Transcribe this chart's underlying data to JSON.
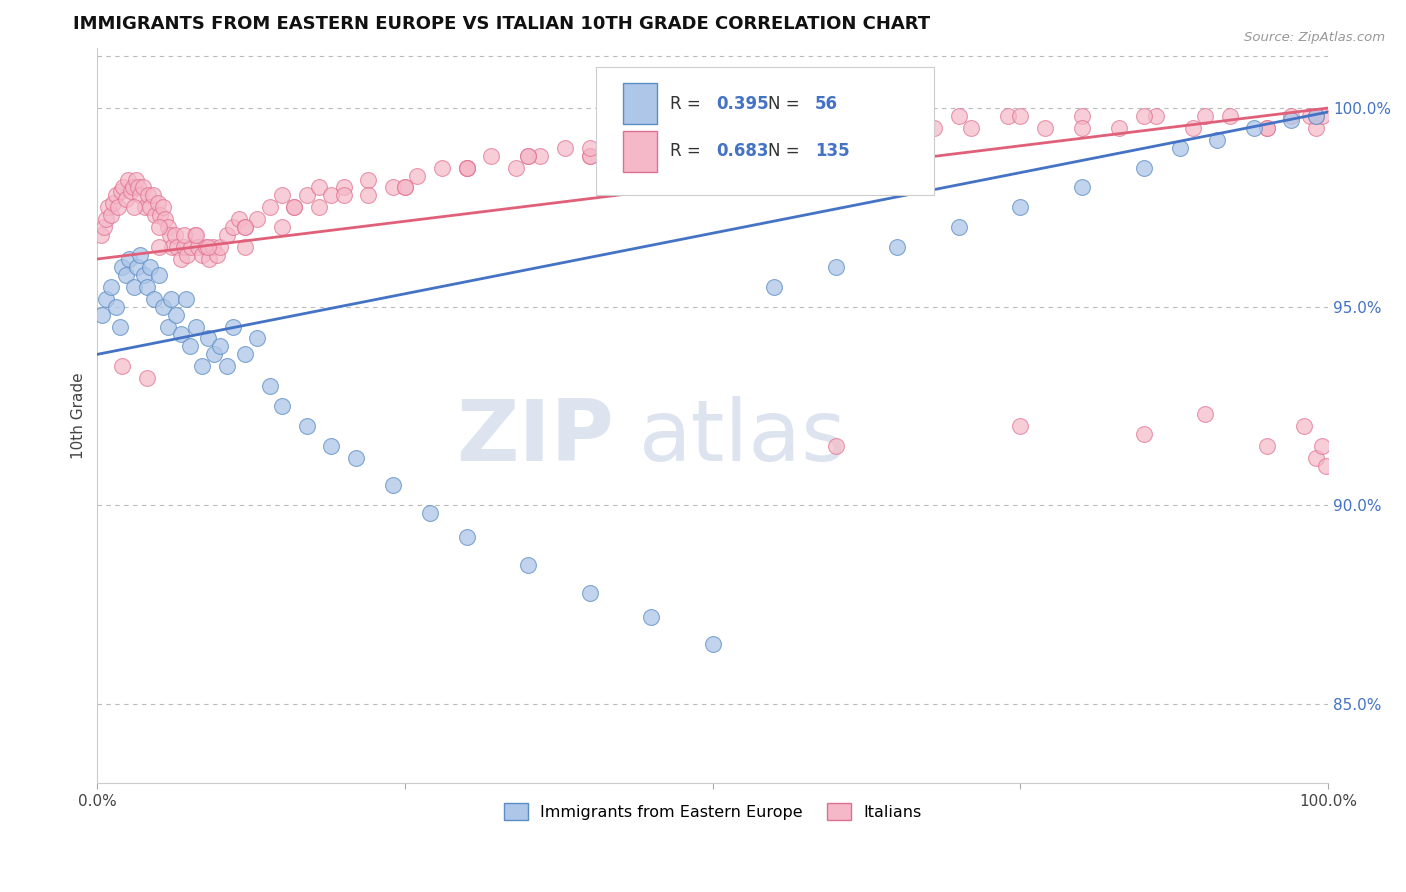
{
  "title": "IMMIGRANTS FROM EASTERN EUROPE VS ITALIAN 10TH GRADE CORRELATION CHART",
  "source": "Source: ZipAtlas.com",
  "ylabel": "10th Grade",
  "y_tick_positions_right": [
    85.0,
    90.0,
    95.0,
    100.0
  ],
  "xlim": [
    0.0,
    100.0
  ],
  "ylim": [
    83.0,
    101.5
  ],
  "blue_R": 0.395,
  "blue_N": 56,
  "pink_R": 0.683,
  "pink_N": 135,
  "blue_color": "#aec6e8",
  "pink_color": "#f5b8c8",
  "blue_edge_color": "#5b8ec4",
  "pink_edge_color": "#e07090",
  "blue_line_color": "#4472c4",
  "pink_line_color": "#e0607a",
  "legend_blue_label": "Immigrants from Eastern Europe",
  "legend_pink_label": "Italians",
  "watermark_zip": "ZIP",
  "watermark_atlas": "atlas",
  "blue_trend_x0": 0,
  "blue_trend_y0": 93.8,
  "blue_trend_x1": 100,
  "blue_trend_y1": 99.9,
  "pink_trend_x0": 0,
  "pink_trend_y0": 96.2,
  "pink_trend_x1": 100,
  "pink_trend_y1": 100.0,
  "blue_scatter_x": [
    0.4,
    0.7,
    1.1,
    1.5,
    1.8,
    2.0,
    2.3,
    2.6,
    3.0,
    3.2,
    3.5,
    3.8,
    4.0,
    4.3,
    4.6,
    5.0,
    5.3,
    5.7,
    6.0,
    6.4,
    6.8,
    7.2,
    7.5,
    8.0,
    8.5,
    9.0,
    9.5,
    10.0,
    10.5,
    11.0,
    12.0,
    13.0,
    14.0,
    15.0,
    17.0,
    19.0,
    21.0,
    24.0,
    27.0,
    30.0,
    35.0,
    40.0,
    45.0,
    50.0,
    55.0,
    60.0,
    65.0,
    70.0,
    75.0,
    80.0,
    85.0,
    88.0,
    91.0,
    94.0,
    97.0,
    99.0
  ],
  "blue_scatter_y": [
    94.8,
    95.2,
    95.5,
    95.0,
    94.5,
    96.0,
    95.8,
    96.2,
    95.5,
    96.0,
    96.3,
    95.8,
    95.5,
    96.0,
    95.2,
    95.8,
    95.0,
    94.5,
    95.2,
    94.8,
    94.3,
    95.2,
    94.0,
    94.5,
    93.5,
    94.2,
    93.8,
    94.0,
    93.5,
    94.5,
    93.8,
    94.2,
    93.0,
    92.5,
    92.0,
    91.5,
    91.2,
    90.5,
    89.8,
    89.2,
    88.5,
    87.8,
    87.2,
    86.5,
    95.5,
    96.0,
    96.5,
    97.0,
    97.5,
    98.0,
    98.5,
    99.0,
    99.2,
    99.5,
    99.7,
    99.8
  ],
  "pink_scatter_x": [
    0.3,
    0.5,
    0.7,
    0.9,
    1.1,
    1.3,
    1.5,
    1.7,
    1.9,
    2.1,
    2.3,
    2.5,
    2.7,
    2.9,
    3.1,
    3.3,
    3.5,
    3.7,
    3.9,
    4.1,
    4.3,
    4.5,
    4.7,
    4.9,
    5.1,
    5.3,
    5.5,
    5.7,
    5.9,
    6.1,
    6.3,
    6.5,
    6.8,
    7.0,
    7.3,
    7.6,
    7.9,
    8.2,
    8.5,
    8.8,
    9.1,
    9.4,
    9.7,
    10.0,
    10.5,
    11.0,
    11.5,
    12.0,
    13.0,
    14.0,
    15.0,
    16.0,
    17.0,
    18.0,
    19.0,
    20.0,
    22.0,
    24.0,
    26.0,
    28.0,
    30.0,
    32.0,
    34.0,
    36.0,
    38.0,
    40.0,
    42.0,
    44.0,
    46.0,
    48.0,
    50.0,
    53.0,
    56.0,
    59.0,
    62.0,
    65.0,
    68.0,
    71.0,
    74.0,
    77.0,
    80.0,
    83.0,
    86.0,
    89.0,
    92.0,
    95.0,
    97.0,
    98.5,
    99.0,
    99.5,
    3.0,
    5.0,
    7.0,
    9.0,
    12.0,
    15.0,
    18.0,
    22.0,
    25.0,
    30.0,
    35.0,
    40.0,
    45.0,
    50.0,
    55.0,
    60.0,
    65.0,
    70.0,
    75.0,
    80.0,
    85.0,
    90.0,
    95.0,
    99.0,
    5.0,
    8.0,
    12.0,
    16.0,
    20.0,
    25.0,
    30.0,
    35.0,
    40.0,
    45.0,
    2.0,
    4.0,
    60.0,
    75.0,
    85.0,
    90.0,
    95.0,
    98.0,
    99.0,
    99.5,
    99.8
  ],
  "pink_scatter_y": [
    96.8,
    97.0,
    97.2,
    97.5,
    97.3,
    97.6,
    97.8,
    97.5,
    97.9,
    98.0,
    97.7,
    98.2,
    97.9,
    98.0,
    98.2,
    98.0,
    97.8,
    98.0,
    97.5,
    97.8,
    97.5,
    97.8,
    97.3,
    97.6,
    97.3,
    97.5,
    97.2,
    97.0,
    96.8,
    96.5,
    96.8,
    96.5,
    96.2,
    96.5,
    96.3,
    96.5,
    96.8,
    96.5,
    96.3,
    96.5,
    96.2,
    96.5,
    96.3,
    96.5,
    96.8,
    97.0,
    97.2,
    97.0,
    97.2,
    97.5,
    97.8,
    97.5,
    97.8,
    98.0,
    97.8,
    98.0,
    98.2,
    98.0,
    98.3,
    98.5,
    98.5,
    98.8,
    98.5,
    98.8,
    99.0,
    98.8,
    99.0,
    99.2,
    98.8,
    99.2,
    99.3,
    99.5,
    99.3,
    99.5,
    99.3,
    99.5,
    99.5,
    99.5,
    99.8,
    99.5,
    99.8,
    99.5,
    99.8,
    99.5,
    99.8,
    99.5,
    99.8,
    99.8,
    99.5,
    99.8,
    97.5,
    97.0,
    96.8,
    96.5,
    96.5,
    97.0,
    97.5,
    97.8,
    98.0,
    98.5,
    98.8,
    98.8,
    99.0,
    99.2,
    99.3,
    99.5,
    99.5,
    99.8,
    99.8,
    99.5,
    99.8,
    99.8,
    99.5,
    99.8,
    96.5,
    96.8,
    97.0,
    97.5,
    97.8,
    98.0,
    98.5,
    98.8,
    99.0,
    99.2,
    93.5,
    93.2,
    91.5,
    92.0,
    91.8,
    92.3,
    91.5,
    92.0,
    91.2,
    91.5,
    91.0
  ]
}
